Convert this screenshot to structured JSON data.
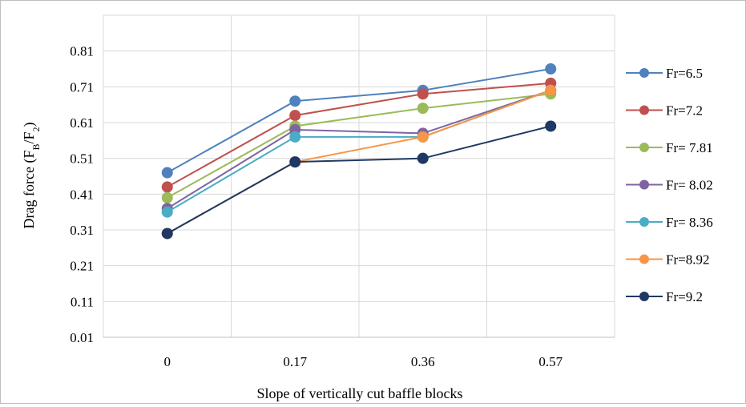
{
  "chart_data": {
    "type": "line",
    "title": "",
    "xlabel": "Slope of vertically cut baffle blocks",
    "ylabel": {
      "main": "Drag force (F",
      "sub1": "B",
      "mid": "/F",
      "sub2": "2",
      "end": ")"
    },
    "categories": [
      "0",
      "0.17",
      "0.36",
      "0.57"
    ],
    "yticks": [
      "0.01",
      "0.11",
      "0.21",
      "0.31",
      "0.41",
      "0.51",
      "0.61",
      "0.71",
      "0.81"
    ],
    "ylim": [
      0.01,
      0.91
    ],
    "grid": true,
    "legend_position": "right",
    "series": [
      {
        "name": "Fr=6.5",
        "color": "#4F81BD",
        "values": [
          0.47,
          0.67,
          0.7,
          0.76
        ]
      },
      {
        "name": "Fr=7.2",
        "color": "#C0504D",
        "values": [
          0.43,
          0.63,
          0.69,
          0.72
        ]
      },
      {
        "name": "Fr= 7.81",
        "color": "#9BBB59",
        "values": [
          0.4,
          0.6,
          0.65,
          0.69
        ]
      },
      {
        "name": "Fr= 8.02",
        "color": "#8064A2",
        "values": [
          0.37,
          0.59,
          0.58,
          0.7
        ]
      },
      {
        "name": "Fr= 8.36",
        "color": "#4BACC6",
        "values": [
          0.36,
          0.57,
          0.57,
          0.7
        ]
      },
      {
        "name": "Fr=8.92",
        "color": "#F79646",
        "values": [
          0.3,
          0.5,
          0.57,
          0.7
        ]
      },
      {
        "name": "Fr=9.2",
        "color": "#1F3864",
        "values": [
          0.3,
          0.5,
          0.51,
          0.6
        ]
      }
    ]
  }
}
